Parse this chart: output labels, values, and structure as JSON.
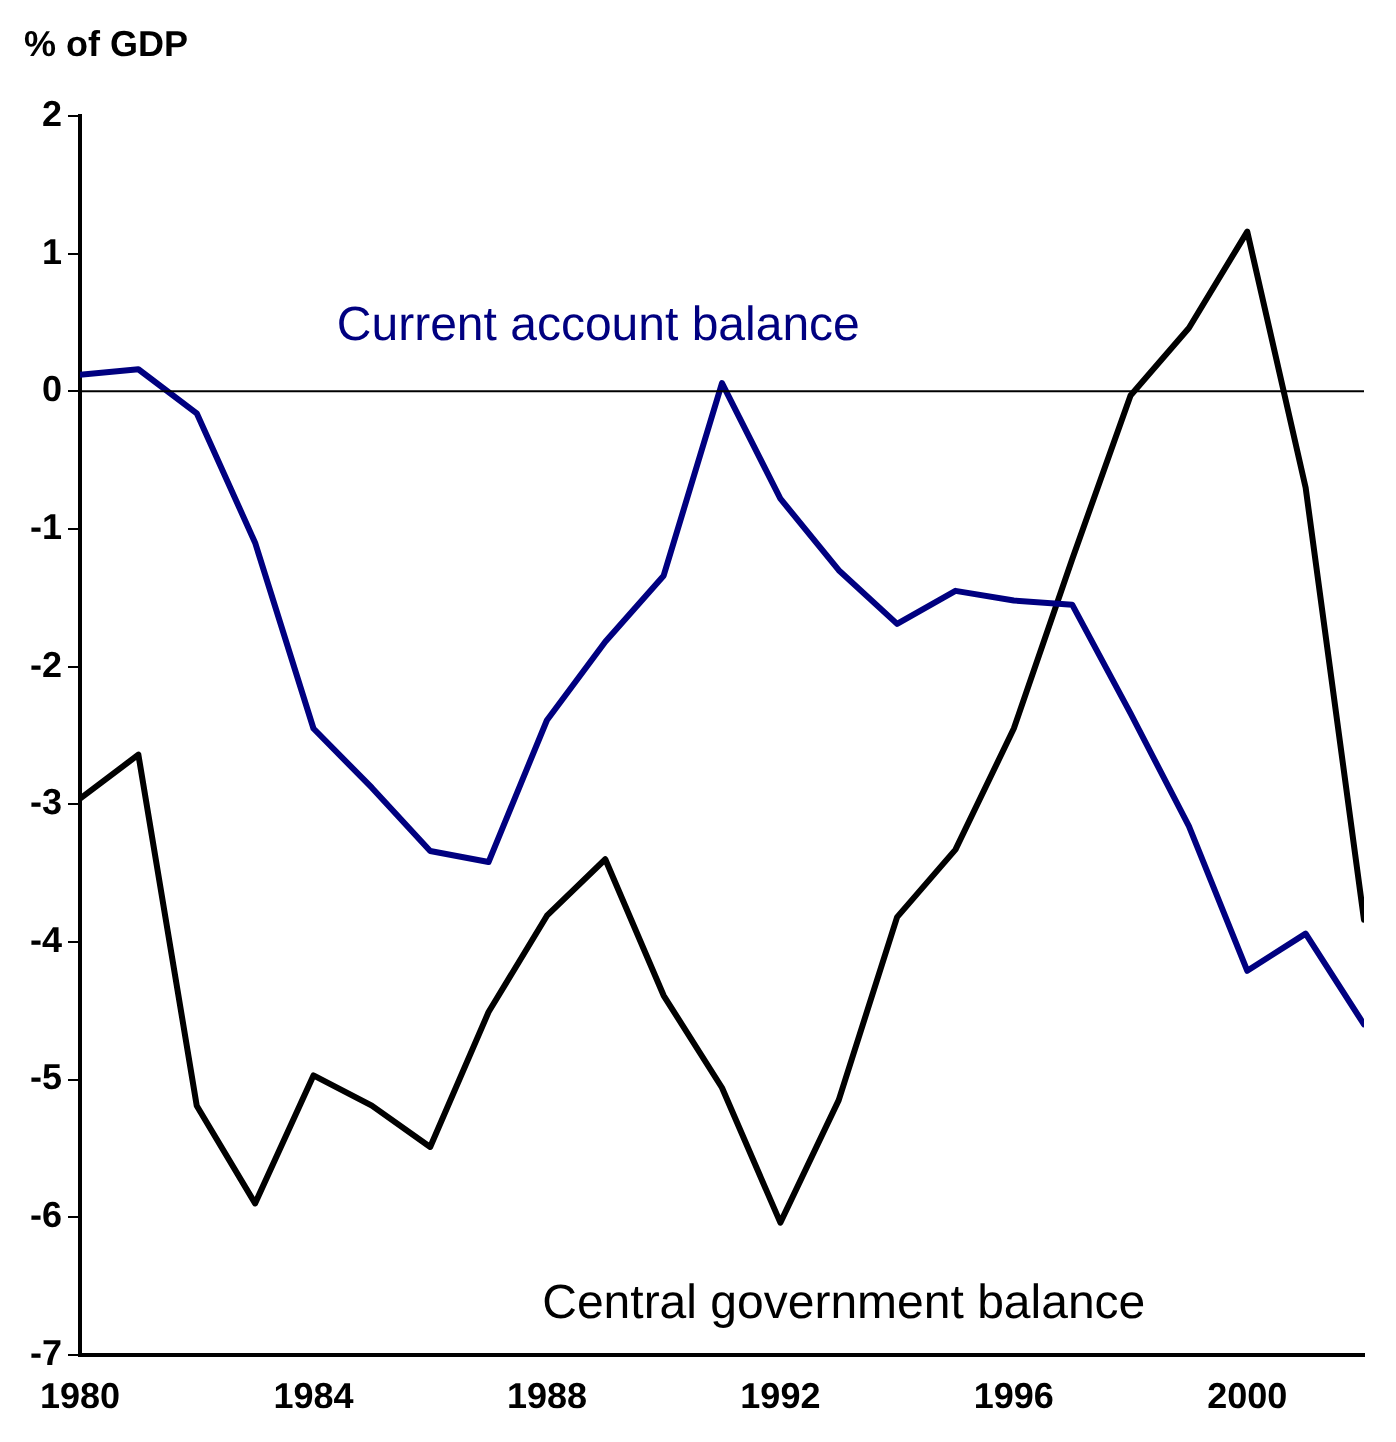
{
  "chart_data": {
    "type": "line",
    "ylabel": "% of GDP",
    "x": [
      1980,
      1981,
      1982,
      1983,
      1984,
      1985,
      1986,
      1987,
      1988,
      1989,
      1990,
      1991,
      1992,
      1993,
      1994,
      1995,
      1996,
      1997,
      1998,
      1999,
      2000,
      2001,
      2002
    ],
    "series": [
      {
        "name": "Current account balance",
        "color": "#000080",
        "values": [
          0.12,
          0.16,
          -0.16,
          -1.1,
          -2.45,
          -2.88,
          -3.34,
          -3.42,
          -2.39,
          -1.82,
          -1.34,
          0.06,
          -0.78,
          -1.3,
          -1.69,
          -1.45,
          -1.52,
          -1.55,
          -2.34,
          -3.16,
          -4.21,
          -3.94,
          -4.6
        ]
      },
      {
        "name": "Central government balance",
        "color": "#000000",
        "values": [
          -2.96,
          -2.64,
          -5.19,
          -5.9,
          -4.97,
          -5.19,
          -5.49,
          -4.51,
          -3.81,
          -3.4,
          -4.39,
          -5.06,
          -6.04,
          -5.15,
          -3.82,
          -3.33,
          -2.45,
          -1.22,
          -0.03,
          0.46,
          1.16,
          -0.7,
          -3.84
        ]
      }
    ],
    "xlim": [
      1980,
      2002
    ],
    "xticks": [
      1980,
      1984,
      1988,
      1992,
      1996,
      2000
    ],
    "ylim": [
      -7,
      2
    ],
    "yticks": [
      -7,
      -6,
      -5,
      -4,
      -3,
      -2,
      -1,
      0,
      1,
      2
    ],
    "ref_lines": [
      {
        "axis": "y",
        "value": 0,
        "color": "#000000"
      }
    ],
    "grid": false,
    "legend": false,
    "marker": "none",
    "line_style": "solid"
  }
}
